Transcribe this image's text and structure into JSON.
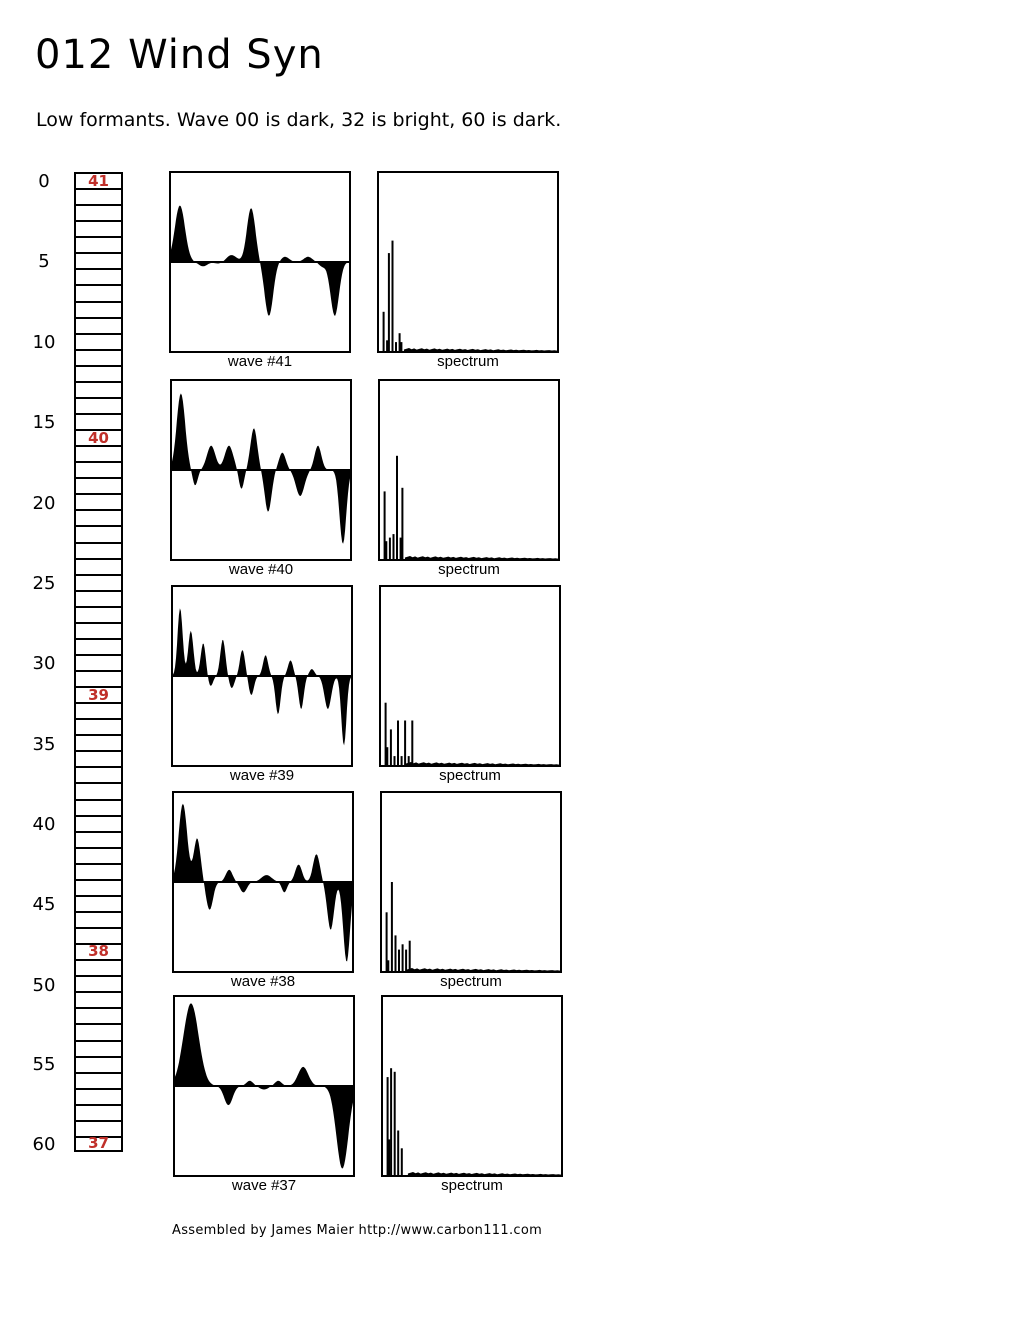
{
  "header": {
    "title": "012 Wind Syn",
    "description": "Low formants. Wave 00 is dark, 32 is bright, 60 is dark."
  },
  "ladder": {
    "axis_labels": [
      "0",
      "5",
      "10",
      "15",
      "20",
      "25",
      "30",
      "35",
      "40",
      "45",
      "50",
      "55",
      "60"
    ],
    "markers": [
      "41",
      "40",
      "39",
      "38",
      "37"
    ]
  },
  "rows": [
    {
      "wave_caption": "wave #41",
      "spectrum_caption": "spectrum"
    },
    {
      "wave_caption": "wave #40",
      "spectrum_caption": "spectrum"
    },
    {
      "wave_caption": "wave #39",
      "spectrum_caption": "spectrum"
    },
    {
      "wave_caption": "wave #38",
      "spectrum_caption": "spectrum"
    },
    {
      "wave_caption": "wave #37",
      "spectrum_caption": "spectrum"
    }
  ],
  "footer": {
    "credit": "Assembled by James Maier http://www.carbon111.com"
  },
  "colors": {
    "marker": "#c0302a",
    "ink": "#000000"
  }
}
